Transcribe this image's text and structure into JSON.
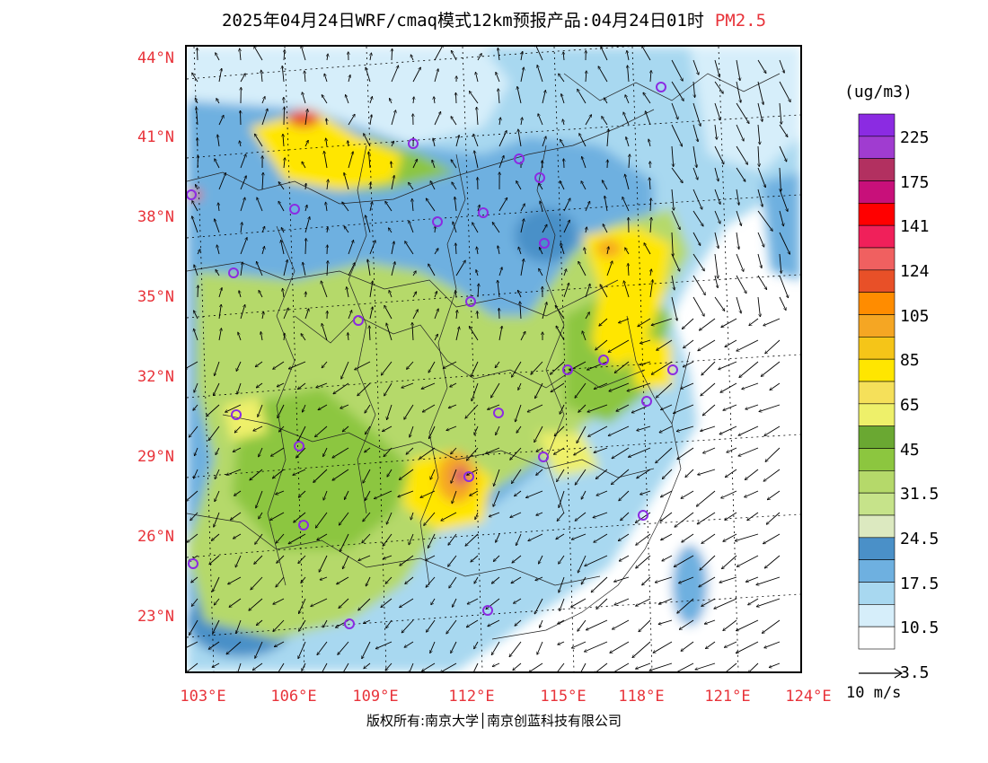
{
  "title": {
    "main": "2025年04月24日WRF/cmaq模式12km预报产品:04月24日01时",
    "pollutant": "PM2.5"
  },
  "axes": {
    "lat_labels": [
      "44°N",
      "41°N",
      "38°N",
      "35°N",
      "32°N",
      "29°N",
      "26°N",
      "23°N"
    ],
    "lon_labels": [
      "103°E",
      "106°E",
      "109°E",
      "112°E",
      "115°E",
      "118°E",
      "121°E",
      "124°E"
    ]
  },
  "colorbar": {
    "unit": "(ug/m3)",
    "labels": [
      "225",
      "175",
      "141",
      "124",
      "105",
      "85",
      "65",
      "45",
      "31.5",
      "24.5",
      "17.5",
      "10.5",
      "3.5"
    ],
    "colors": [
      "#8b2be2",
      "#a03cd0",
      "#b23060",
      "#c8107a",
      "#ff0000",
      "#f0205a",
      "#f06060",
      "#e85028",
      "#ff8c00",
      "#f5a623",
      "#f5c518",
      "#ffe600",
      "#f5e05a",
      "#eef06a",
      "#6aa832",
      "#8cc63f",
      "#b5d96a",
      "#c6e38a",
      "#dce9c0",
      "#4a90c8",
      "#6eb0e0",
      "#a8d8f0",
      "#d6eefa",
      "#ffffff"
    ]
  },
  "wind_reference": "10 m/s",
  "copyright": "版权所有:南京大学│南京创蓝科技有限公司",
  "map": {
    "colors": {
      "white": "#ffffff",
      "very_light_blue": "#d6eefa",
      "light_blue": "#a8d8f0",
      "medium_blue": "#6eb0e0",
      "dark_blue": "#4a90c8",
      "pale_green": "#dce9c0",
      "light_green": "#b5d96a",
      "green": "#8cc63f",
      "dark_green": "#6aa832",
      "pale_yellow": "#eef06a",
      "yellow": "#ffe600",
      "orange": "#f5a623",
      "red_orange": "#e85028",
      "magenta": "#c8107a",
      "station_purple": "#8b2be2"
    },
    "station_count": 29
  }
}
